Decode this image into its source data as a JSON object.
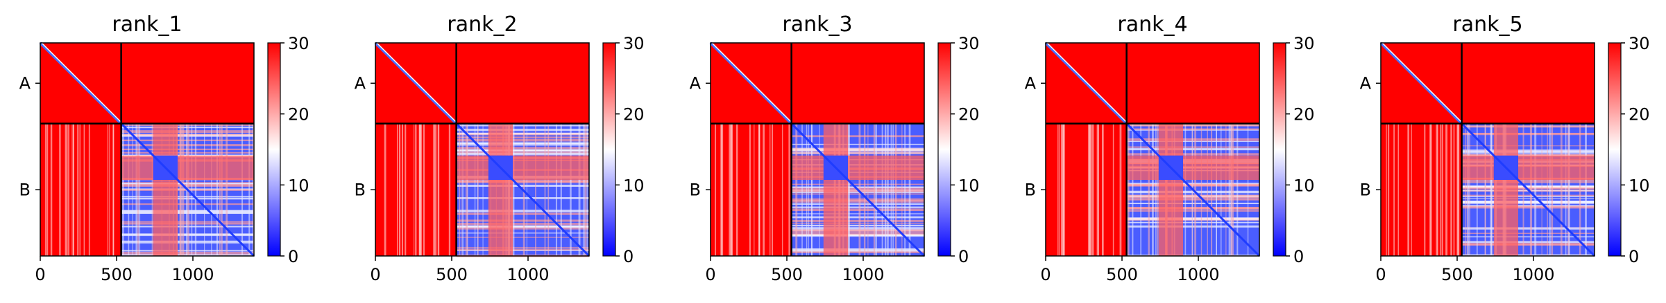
{
  "chart_data": [
    {
      "type": "heatmap",
      "title": "rank_1",
      "xlabel": "",
      "ylabel": "",
      "x_ticks": [
        0,
        500,
        1000
      ],
      "xlim": [
        0,
        1400
      ],
      "chain_labels": [
        "A",
        "B"
      ],
      "chain_boundary": 530,
      "colorbar": {
        "ticks": [
          0,
          10,
          20,
          30
        ],
        "range": [
          0,
          30
        ],
        "colors": [
          "#0000ff",
          "#ffffff",
          "#ff0000"
        ]
      },
      "blue_regions": [
        [
          530,
          1400
        ]
      ],
      "red_bands": [
        [
          740,
          900
        ]
      ],
      "inner_block": [
        740,
        900
      ]
    },
    {
      "type": "heatmap",
      "title": "rank_2",
      "xlabel": "",
      "ylabel": "",
      "x_ticks": [
        0,
        500,
        1000
      ],
      "xlim": [
        0,
        1400
      ],
      "chain_labels": [
        "A",
        "B"
      ],
      "chain_boundary": 530,
      "colorbar": {
        "ticks": [
          0,
          10,
          20,
          30
        ],
        "range": [
          0,
          30
        ],
        "colors": [
          "#0000ff",
          "#ffffff",
          "#ff0000"
        ]
      },
      "blue_regions": [
        [
          530,
          1400
        ]
      ],
      "red_bands": [
        [
          740,
          900
        ]
      ],
      "inner_block": [
        740,
        900
      ]
    },
    {
      "type": "heatmap",
      "title": "rank_3",
      "xlabel": "",
      "ylabel": "",
      "x_ticks": [
        0,
        500,
        1000
      ],
      "xlim": [
        0,
        1400
      ],
      "chain_labels": [
        "A",
        "B"
      ],
      "chain_boundary": 530,
      "colorbar": {
        "ticks": [
          0,
          10,
          20,
          30
        ],
        "range": [
          0,
          30
        ],
        "colors": [
          "#0000ff",
          "#ffffff",
          "#ff0000"
        ]
      },
      "blue_regions": [
        [
          530,
          1400
        ]
      ],
      "red_bands": [
        [
          740,
          900
        ]
      ],
      "inner_block": [
        740,
        900
      ]
    },
    {
      "type": "heatmap",
      "title": "rank_4",
      "xlabel": "",
      "ylabel": "",
      "x_ticks": [
        0,
        500,
        1000
      ],
      "xlim": [
        0,
        1400
      ],
      "chain_labels": [
        "A",
        "B"
      ],
      "chain_boundary": 530,
      "colorbar": {
        "ticks": [
          0,
          10,
          20,
          30
        ],
        "range": [
          0,
          30
        ],
        "colors": [
          "#0000ff",
          "#ffffff",
          "#ff0000"
        ]
      },
      "blue_regions": [
        [
          530,
          1400
        ]
      ],
      "red_bands": [
        [
          740,
          900
        ]
      ],
      "inner_block": [
        740,
        900
      ]
    },
    {
      "type": "heatmap",
      "title": "rank_5",
      "xlabel": "",
      "ylabel": "",
      "x_ticks": [
        0,
        500,
        1000
      ],
      "xlim": [
        0,
        1400
      ],
      "chain_labels": [
        "A",
        "B"
      ],
      "chain_boundary": 530,
      "colorbar": {
        "ticks": [
          0,
          10,
          20,
          30
        ],
        "range": [
          0,
          30
        ],
        "colors": [
          "#0000ff",
          "#ffffff",
          "#ff0000"
        ]
      },
      "blue_regions": [
        [
          530,
          1400
        ]
      ],
      "red_bands": [
        [
          740,
          900
        ]
      ],
      "inner_block": [
        740,
        900
      ]
    }
  ]
}
